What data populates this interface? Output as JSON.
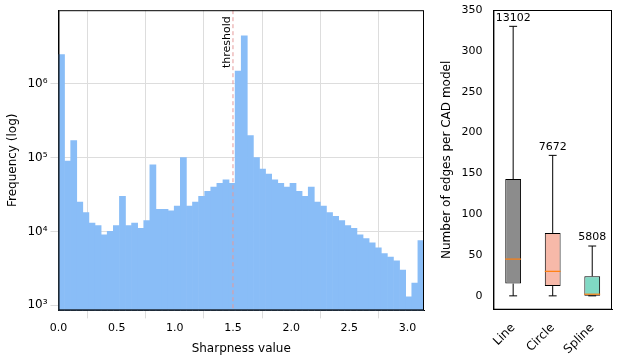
{
  "chart_data": [
    {
      "type": "histogram",
      "xlabel": "Sharpness value",
      "ylabel": "Frequency (log)",
      "bins": [
        0,
        0.052,
        0.105,
        0.157,
        0.209,
        0.262,
        0.314,
        0.367,
        0.419,
        0.471,
        0.524,
        0.576,
        0.628,
        0.681,
        0.733,
        0.785,
        0.838,
        0.89,
        0.942,
        0.995,
        1.047,
        1.1,
        1.152,
        1.204,
        1.257,
        1.309,
        1.361,
        1.414,
        1.466,
        1.518,
        1.571,
        1.623,
        1.676,
        1.728,
        1.78,
        1.833,
        1.885,
        1.937,
        1.99,
        2.042,
        2.094,
        2.147,
        2.199,
        2.251,
        2.304,
        2.356,
        2.409,
        2.461,
        2.513,
        2.566,
        2.618,
        2.67,
        2.723,
        2.775,
        2.827,
        2.88,
        2.932,
        2.985,
        3.037,
        3.089,
        3.142
      ],
      "values": [
        2500000,
        90000,
        170000,
        25000,
        18000,
        13000,
        12000,
        9000,
        10000,
        12000,
        30000,
        12000,
        13000,
        11000,
        14000,
        80000,
        20000,
        20000,
        19000,
        22000,
        100000,
        22000,
        25000,
        30000,
        35000,
        40000,
        45000,
        50000,
        45000,
        1500000,
        4500000,
        200000,
        100000,
        70000,
        60000,
        50000,
        45000,
        40000,
        45000,
        35000,
        30000,
        40000,
        25000,
        22000,
        18000,
        16000,
        14000,
        12000,
        11000,
        9000,
        8000,
        7000,
        6000,
        5000,
        4500,
        4000,
        3000,
        1300,
        2000,
        7500
      ],
      "color": "#89bdf7",
      "xlim": [
        0,
        3.142
      ],
      "ylim": [
        850,
        10000000
      ],
      "xticks": [
        {
          "value": 0,
          "label": "0.0"
        },
        0.5,
        {
          "value": 1,
          "label": "1.0"
        },
        1.5,
        {
          "value": 2,
          "label": "2.0"
        },
        2.5,
        {
          "value": 3,
          "label": "3.0"
        }
      ],
      "yticks": [
        {
          "value": 1000,
          "label": "10³"
        },
        {
          "value": 10000,
          "label": "10⁴"
        },
        {
          "value": 100000,
          "label": "10⁵"
        },
        {
          "value": 1000000,
          "label": "10⁶"
        }
      ],
      "log": "y",
      "grid": true,
      "annotations": [
        {
          "x": 1.5,
          "text": "threshold"
        }
      ]
    },
    {
      "type": "box",
      "ylabel": "Number of edges per CAD model",
      "categories": [
        "Line",
        "Circle",
        "Spline"
      ],
      "min": [
        0,
        0,
        0
      ],
      "q1": [
        15,
        12,
        0
      ],
      "median": [
        45,
        30,
        2
      ],
      "q3": [
        143,
        77,
        24
      ],
      "max": [
        330,
        172,
        61
      ],
      "counts": [
        13102,
        7672,
        5808
      ],
      "colors": [
        "#8c8c8c",
        "#f7b9a9",
        "#80d9c4"
      ],
      "ylim": [
        -17,
        350
      ],
      "yticks": [
        0,
        50,
        100,
        150,
        200,
        250,
        300,
        350
      ],
      "grid": false
    }
  ]
}
